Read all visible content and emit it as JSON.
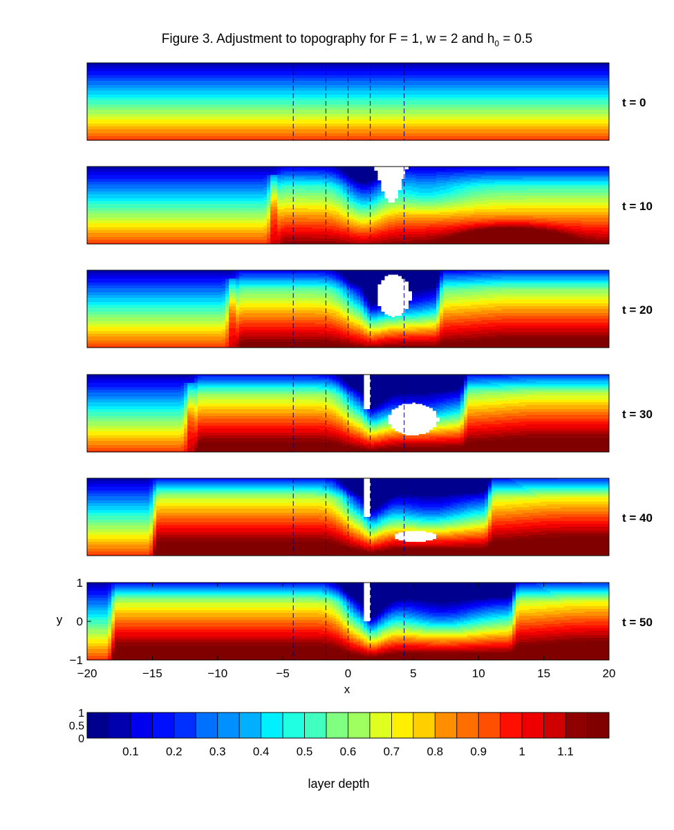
{
  "chart_data": {
    "type": "heatmap",
    "title": "Figure 3.  Adjustment to topography for F = 1, w = 2 and h",
    "title_subscript": "0",
    "title_suffix": " = 0.5",
    "xlabel": "x",
    "ylabel": "y",
    "xlim": [
      -20,
      20
    ],
    "ylim": [
      -1,
      1
    ],
    "x_ticks": [
      -20,
      -15,
      -10,
      -5,
      0,
      5,
      10,
      15,
      20
    ],
    "x_tick_labels": [
      "−20",
      "−15",
      "−10",
      "−5",
      "0",
      "5",
      "10",
      "15",
      "20"
    ],
    "y_ticks": [
      1,
      0,
      -1
    ],
    "y_tick_labels": [
      "1",
      "0",
      "−1"
    ],
    "topography_lines_x": [
      -4.2,
      -1.7,
      0,
      1.7,
      4.3
    ],
    "panels": [
      {
        "label": "t = 0",
        "t": 0
      },
      {
        "label": "t = 10",
        "t": 10
      },
      {
        "label": "t = 20",
        "t": 20
      },
      {
        "label": "t = 30",
        "t": 30
      },
      {
        "label": "t = 40",
        "t": 40
      },
      {
        "label": "t = 50",
        "t": 50
      }
    ],
    "colorbar": {
      "label": "layer depth",
      "range": [
        0,
        1.2
      ],
      "levels": 24,
      "ticks": [
        0.1,
        0.2,
        0.3,
        0.4,
        0.5,
        0.6,
        0.7,
        0.8,
        0.9,
        1,
        1.1
      ],
      "tick_labels": [
        "0.1",
        "0.2",
        "0.3",
        "0.4",
        "0.5",
        "0.6",
        "0.7",
        "0.8",
        "0.9",
        "1",
        "1.1"
      ],
      "ylim_labels": [
        "1",
        "0.5",
        "0"
      ],
      "colors": [
        "#00008f",
        "#0000af",
        "#0000cf",
        "#0000ef",
        "#0010ff",
        "#0030ff",
        "#0050ff",
        "#0070ff",
        "#0090ff",
        "#00b0ff",
        "#00d0ff",
        "#00f0ff",
        "#20ffdf",
        "#40ffbf",
        "#60ff9f",
        "#80ff80",
        "#9fff60",
        "#bfff40",
        "#dfff20",
        "#ffef00",
        "#ffcf00",
        "#ffaf00",
        "#ff8f00",
        "#ff6f00",
        "#ff4f00",
        "#ff2f00",
        "#ff0f00",
        "#ef0000",
        "#cf0000",
        "#af0000",
        "#8f0000",
        "#800000"
      ]
    }
  }
}
